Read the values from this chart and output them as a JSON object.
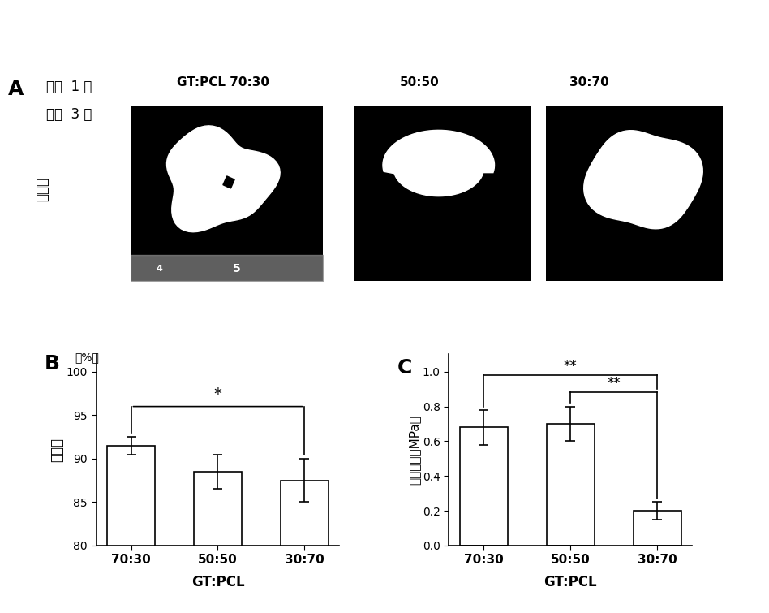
{
  "panel_A_label": "A",
  "panel_B_label": "B",
  "panel_C_label": "C",
  "top_text_line1": "体外  1 周",
  "top_text_line2": "体内  3 周",
  "col_labels": [
    "GT:PCL 70:30",
    "50:50",
    "30:70"
  ],
  "left_label": "大体观",
  "bar_B_categories": [
    "70:30",
    "50:50",
    "30:70"
  ],
  "bar_B_values": [
    91.5,
    88.5,
    87.5
  ],
  "bar_B_errors": [
    1.0,
    2.0,
    2.5
  ],
  "bar_B_ylabel": "粘附率",
  "bar_B_ylabel2": "（%）",
  "bar_B_xlabel": "GT:PCL",
  "bar_B_yticks": [
    80,
    85,
    90,
    95,
    100
  ],
  "bar_B_ylim": [
    80,
    102
  ],
  "bar_C_categories": [
    "70:30",
    "50:50",
    "30:70"
  ],
  "bar_C_values": [
    0.68,
    0.7,
    0.2
  ],
  "bar_C_errors": [
    0.1,
    0.1,
    0.05
  ],
  "bar_C_ylabel": "杨氏模量（MPa）",
  "bar_C_xlabel": "GT:PCL",
  "bar_C_yticks": [
    0.0,
    0.2,
    0.4,
    0.6,
    0.8,
    1.0
  ],
  "bar_C_ylim": [
    0.0,
    1.1
  ],
  "bar_color": "#ffffff",
  "bar_edgecolor": "#000000",
  "sig_B": "*",
  "sig_C1": "**",
  "sig_C2": "**",
  "font_color": "#000000",
  "bg_color": "#ffffff"
}
